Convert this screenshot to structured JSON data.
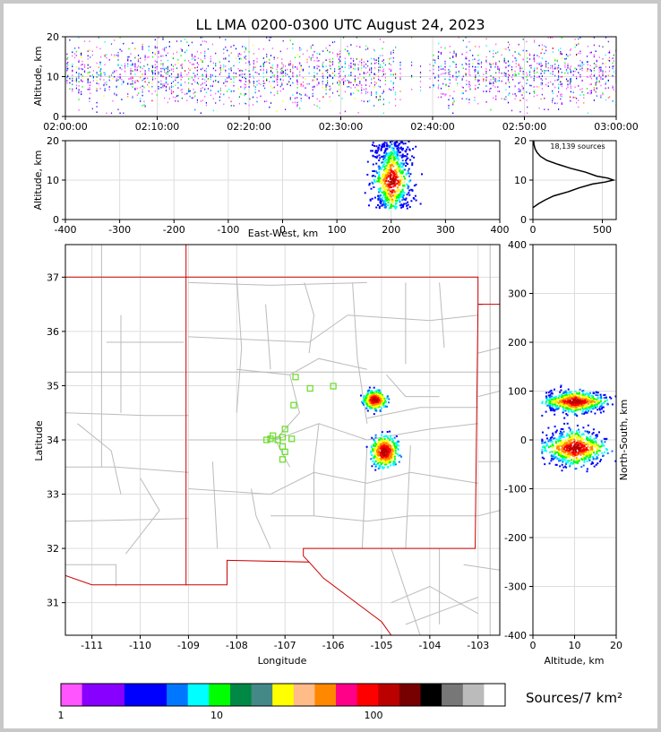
{
  "title": "LL LMA 0200-0300 UTC August 24, 2023",
  "colors": {
    "panel_border": "#000000",
    "grid": "#dddddd",
    "state_line": "#cc0000",
    "county_line": "#bbbbbb",
    "station": "#66dd22"
  },
  "chart_data": [
    {
      "name": "altitude-time",
      "type": "scatter",
      "ylabel": "Altitude, km",
      "xlabel": "",
      "xticks": [
        "02:00:00",
        "02:10:00",
        "02:20:00",
        "02:30:00",
        "02:40:00",
        "02:50:00",
        "03:00:00"
      ],
      "xlim": [
        "02:00:00",
        "03:00:00"
      ],
      "yticks": [
        0,
        10,
        20
      ],
      "ylim": [
        0,
        20
      ]
    },
    {
      "name": "altitude-east-west",
      "type": "scatter",
      "ylabel": "Altitude, km",
      "xlabel": "East-West, km",
      "xticks": [
        -400,
        -300,
        -200,
        -100,
        0,
        100,
        200,
        300,
        400
      ],
      "xlim": [
        -400,
        400
      ],
      "yticks": [
        0,
        10,
        20
      ],
      "ylim": [
        0,
        20
      ],
      "clusters": [
        {
          "x_center": 200,
          "x_spread": 30,
          "z_low": 3,
          "z_high": 20
        }
      ]
    },
    {
      "name": "altitude-histogram",
      "type": "line",
      "annotation": "18,139 sources",
      "xticks": [
        0,
        500
      ],
      "xlim": [
        0,
        600
      ],
      "yticks": [
        0,
        10,
        20
      ],
      "ylim": [
        0,
        20
      ],
      "profile": [
        [
          3,
          0
        ],
        [
          4,
          40
        ],
        [
          5,
          90
        ],
        [
          6,
          150
        ],
        [
          7,
          250
        ],
        [
          8,
          330
        ],
        [
          9,
          430
        ],
        [
          9.5,
          520
        ],
        [
          10,
          580
        ],
        [
          10.5,
          540
        ],
        [
          11,
          460
        ],
        [
          12,
          380
        ],
        [
          13,
          270
        ],
        [
          14,
          180
        ],
        [
          15,
          100
        ],
        [
          16,
          55
        ],
        [
          17,
          30
        ],
        [
          18,
          15
        ],
        [
          19,
          8
        ],
        [
          20,
          5
        ]
      ]
    },
    {
      "name": "plan-view",
      "type": "scatter",
      "xlabel": "Longitude",
      "ylabel": "Latitude",
      "xticks": [
        -111,
        -110,
        -109,
        -108,
        -107,
        -106,
        -105,
        -104,
        -103
      ],
      "xlim": [
        -111.55,
        -102.55
      ],
      "yticks": [
        31,
        32,
        33,
        34,
        35,
        36,
        37
      ],
      "ylim": [
        30.4,
        37.6
      ],
      "clusters": [
        {
          "lon": -105.15,
          "lat": 34.75,
          "lon_spread": 0.25,
          "lat_spread": 0.18
        },
        {
          "lon": -104.95,
          "lat": 33.8,
          "lon_spread": 0.3,
          "lat_spread": 0.3
        }
      ],
      "stations": [
        [
          -106.78,
          35.16
        ],
        [
          -106.48,
          34.95
        ],
        [
          -106.0,
          34.99
        ],
        [
          -106.82,
          34.64
        ],
        [
          -107.0,
          34.2
        ],
        [
          -107.25,
          34.08
        ],
        [
          -107.3,
          34.02
        ],
        [
          -107.05,
          34.05
        ],
        [
          -106.86,
          34.02
        ],
        [
          -107.38,
          34.0
        ],
        [
          -107.15,
          34.0
        ],
        [
          -107.05,
          33.88
        ],
        [
          -107.0,
          33.78
        ],
        [
          -107.05,
          33.64
        ]
      ]
    },
    {
      "name": "north-south",
      "type": "scatter",
      "xlabel": "Altitude, km",
      "ylabel": "North-South, km",
      "xticks": [
        0,
        10,
        20
      ],
      "xlim": [
        0,
        20
      ],
      "yticks": [
        400,
        300,
        200,
        100,
        0,
        -100,
        -200,
        -300,
        -400
      ],
      "ylim": [
        -400,
        400
      ],
      "clusters": [
        {
          "ns_center": 80,
          "ns_spread": 22
        },
        {
          "ns_center": -15,
          "ns_spread": 35
        }
      ]
    }
  ],
  "colorbar": {
    "label": "Sources/7 km²",
    "tick_labels": [
      "1",
      "10",
      "100"
    ],
    "colors": [
      "#ff55ff",
      "#8800ff",
      "#8800ff",
      "#0000ff",
      "#0000ff",
      "#0077ff",
      "#00ffff",
      "#00ff00",
      "#008844",
      "#448888",
      "#ffff00",
      "#ffbb88",
      "#ff8800",
      "#ff0088",
      "#ff0000",
      "#bb0000",
      "#770000",
      "#000000",
      "#777777",
      "#bbbbbb",
      "#ffffff"
    ]
  }
}
